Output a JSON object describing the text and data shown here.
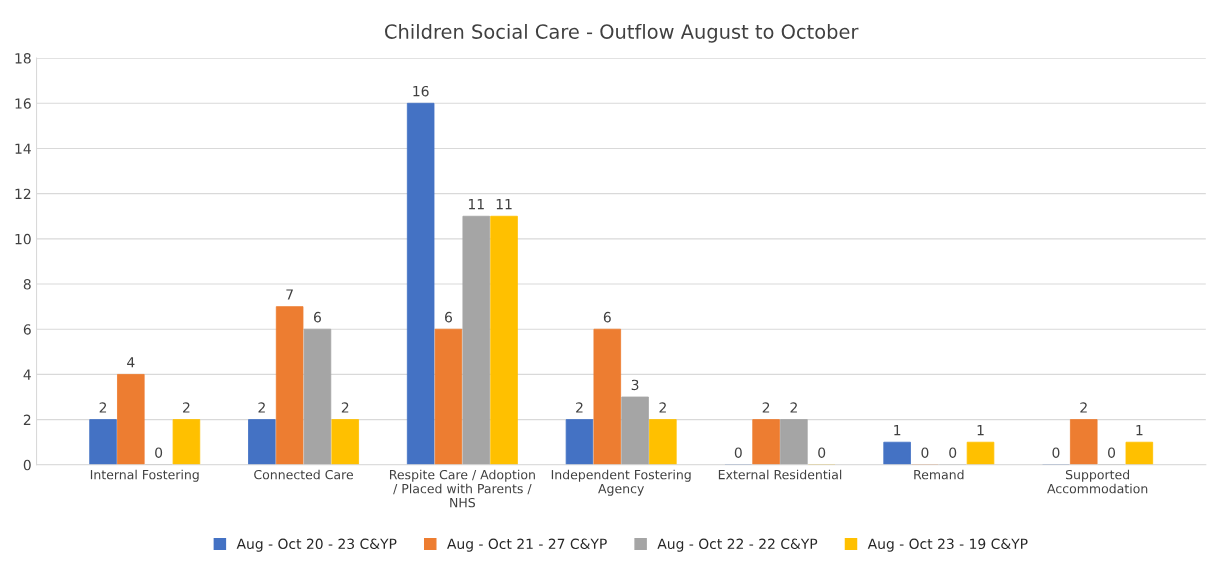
{
  "chart_data": {
    "type": "bar",
    "title": "Children Social Care - Outflow August to October",
    "categories": [
      "Internal Fostering",
      "Connected Care",
      "Respite Care / Adoption\n/ Placed with Parents /\nNHS",
      "Independent Fostering\nAgency",
      "External Residential",
      "Remand",
      "Supported\nAccommodation"
    ],
    "series": [
      {
        "name": "Aug - Oct 20 - 23 C&YP",
        "color": "#4472c4",
        "values": [
          2,
          2,
          16,
          2,
          0,
          1,
          0
        ]
      },
      {
        "name": "Aug - Oct 21 - 27 C&YP",
        "color": "#ed7d31",
        "values": [
          4,
          7,
          6,
          6,
          2,
          0,
          2
        ]
      },
      {
        "name": "Aug - Oct 22 - 22 C&YP",
        "color": "#a5a5a5",
        "values": [
          0,
          6,
          11,
          3,
          2,
          0,
          0
        ]
      },
      {
        "name": "Aug - Oct 23 - 19 C&YP",
        "color": "#ffc000",
        "values": [
          2,
          2,
          11,
          2,
          0,
          1,
          1
        ]
      }
    ],
    "ylim": [
      0,
      18
    ],
    "yticks": [
      0,
      2,
      4,
      6,
      8,
      10,
      12,
      14,
      16,
      18
    ],
    "grid": "y",
    "legend": "bottom",
    "data_labels": true
  }
}
